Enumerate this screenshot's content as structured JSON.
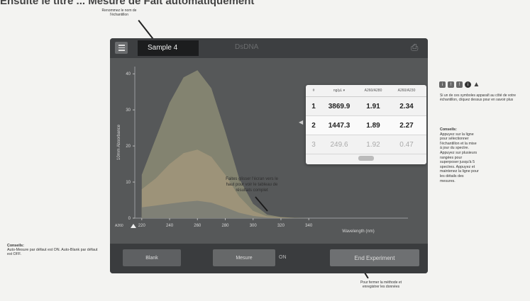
{
  "headline": "Ensuite le titre ... Mesure de Fait automatiquement",
  "callouts": {
    "top": "Renommez le nom de l'échantillon",
    "icons_text": "Si un de ces symboles apparaît au côté de votre échantillon, cliquez dessus pour en savoir plus",
    "tips_title": "Conseils:",
    "tips_text": "Appuyez sur la ligne pour sélectionner l'échantillon et la mise à jour du spectre. Appuyez sur plusieurs rangées pour superposer jusqu'à 5 spectres. Appuyez et maintenez la ligne pour les détails des mesures.",
    "left_title": "Conseils:",
    "left_text": "Auto-Mesure par défaut est ON. Auto-Blank par défaut est OFF.",
    "bottom": "Pour fermer la méthode et enregistrer les données"
  },
  "icons": [
    "info-icon",
    "warning-outline-icon",
    "exclamation-icon",
    "info-circle-icon",
    "warning-triangle-icon"
  ],
  "device": {
    "sample_name": "Sample 4",
    "method_title": "DsDNA",
    "overlay_text": "Faites glisser l'écran vers le haut pour voir le tableau de résultats complet",
    "table": {
      "headers": [
        "#",
        "ng/µL ▾",
        "A260/A280",
        "A260/A230"
      ],
      "rows": [
        [
          "1",
          "3869.9",
          "1.91",
          "2.34"
        ],
        [
          "2",
          "1447.3",
          "1.89",
          "2.27"
        ],
        [
          "3",
          "249.6",
          "1.92",
          "0.47"
        ]
      ]
    },
    "buttons": {
      "blank": "Blank",
      "measure": "Mesure",
      "measure_state": "ON",
      "end": "End Experiment"
    },
    "axis": {
      "ylabel": "10mm Absorbance",
      "xlabel": "Wavelength (nm)",
      "x_ticks": [
        "220",
        "240",
        "260",
        "280",
        "300",
        "320",
        "340"
      ],
      "y_ticks": [
        "40",
        "30",
        "20",
        "10",
        "0"
      ],
      "marker_label": "A260"
    }
  },
  "chart_data": {
    "type": "area",
    "x": [
      220,
      230,
      240,
      250,
      260,
      270,
      280,
      290,
      300,
      310,
      320,
      330,
      340
    ],
    "series": [
      {
        "values": [
          12,
          22,
          32,
          39,
          41,
          36,
          24,
          11,
          4,
          1,
          0.3,
          0.1,
          0
        ]
      },
      {
        "values": [
          8,
          11,
          15,
          18,
          19,
          17,
          12,
          6,
          2,
          0.5,
          0.2,
          0,
          0
        ]
      },
      {
        "values": [
          3,
          3.5,
          4,
          4.5,
          4.8,
          4.3,
          3,
          1.5,
          0.6,
          0.2,
          0,
          0,
          0
        ]
      }
    ],
    "xlabel": "Wavelength (nm)",
    "ylabel": "10mm Absorbance",
    "xlim": [
      215,
      345
    ],
    "ylim": [
      0,
      42
    ]
  }
}
